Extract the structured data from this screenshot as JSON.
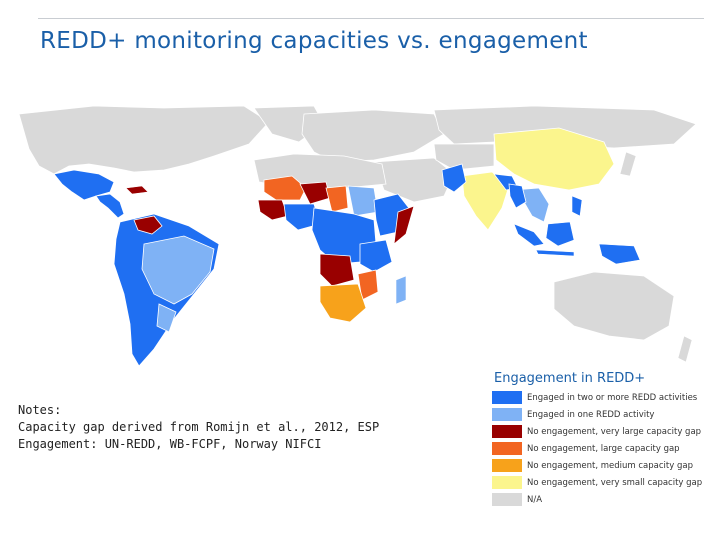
{
  "title": "REDD+ monitoring capacities vs. engagement",
  "legend": {
    "title": "Engagement in REDD+",
    "items": [
      {
        "label": "Engaged in two or more REDD activities",
        "color": "#1f6ff2"
      },
      {
        "label": "Engaged in one REDD activity",
        "color": "#7fb2f5"
      },
      {
        "label": "No engagement, very large capacity gap",
        "color": "#990000"
      },
      {
        "label": "No engagement, large capacity gap",
        "color": "#f26522"
      },
      {
        "label": "No engagement, medium capacity gap",
        "color": "#f7a21b"
      },
      {
        "label": "No engagement, very small capacity gap",
        "color": "#fbf58d"
      },
      {
        "label": "N/A",
        "color": "#d9d9d9"
      }
    ]
  },
  "notes": {
    "heading": "Notes:",
    "line1": "Capacity gap derived from Romijn et al., 2012, ESP",
    "line2": "Engagement: UN-REDD, WB-FCPF, Norway NIFCI"
  },
  "colors": {
    "title": "#1a5fa8",
    "land_na": "#d9d9d9",
    "border": "#ffffff"
  }
}
